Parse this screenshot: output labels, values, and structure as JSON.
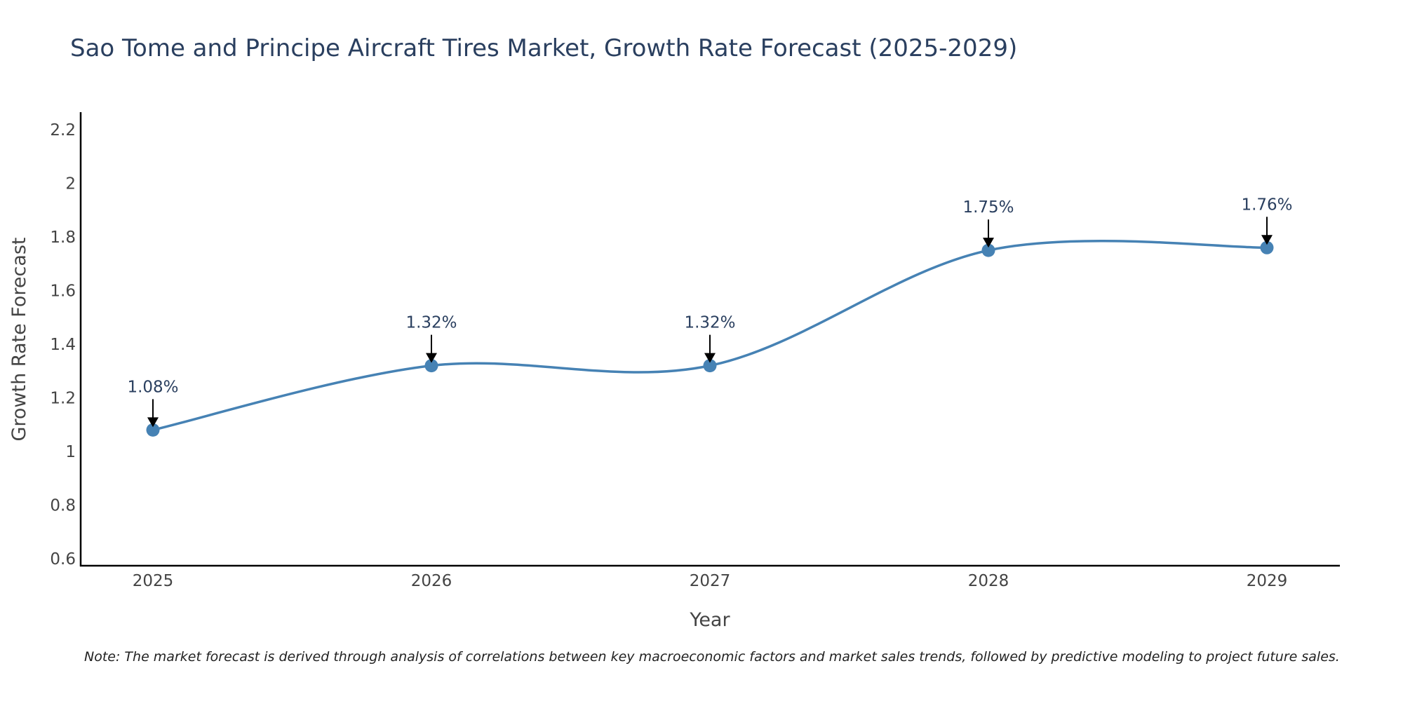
{
  "chart_data": {
    "type": "line",
    "title": "Sao Tome and Principe Aircraft Tires Market, Growth Rate Forecast (2025-2029)",
    "xlabel": "Year",
    "ylabel": "Growth Rate Forecast",
    "categories": [
      "2025",
      "2026",
      "2027",
      "2028",
      "2029"
    ],
    "x": [
      2025,
      2026,
      2027,
      2028,
      2029
    ],
    "series": [
      {
        "name": "Growth Rate Forecast",
        "values": [
          1.08,
          1.32,
          1.32,
          1.75,
          1.76
        ],
        "labels": [
          "1.08%",
          "1.32%",
          "1.32%",
          "1.75%",
          "1.76%"
        ],
        "color": "#4682b4"
      }
    ],
    "ylim": [
      0.6,
      2.2
    ],
    "yticks": [
      "0.6",
      "0.8",
      "1",
      "1.2",
      "1.4",
      "1.6",
      "1.8",
      "2",
      "2.2"
    ],
    "grid": false,
    "line_shape": "spline",
    "annotation_arrows": true,
    "note": "Note: The market forecast is derived through analysis of correlations between key macroeconomic factors and market sales trends, followed by predictive modeling to project future sales."
  }
}
